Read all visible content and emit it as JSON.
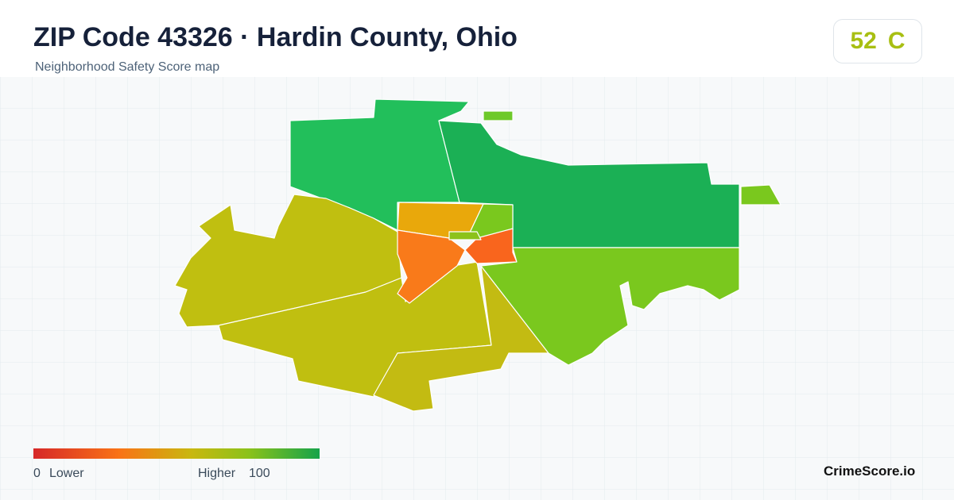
{
  "header": {
    "title": "ZIP Code 43326 · Hardin County, Ohio",
    "subtitle": "Neighborhood Safety Score map"
  },
  "score": {
    "value": 52,
    "grade": "C"
  },
  "legend": {
    "min": 0,
    "min_label": "Lower",
    "max_label": "Higher",
    "max": 100
  },
  "brand": "CrimeScore.io"
}
